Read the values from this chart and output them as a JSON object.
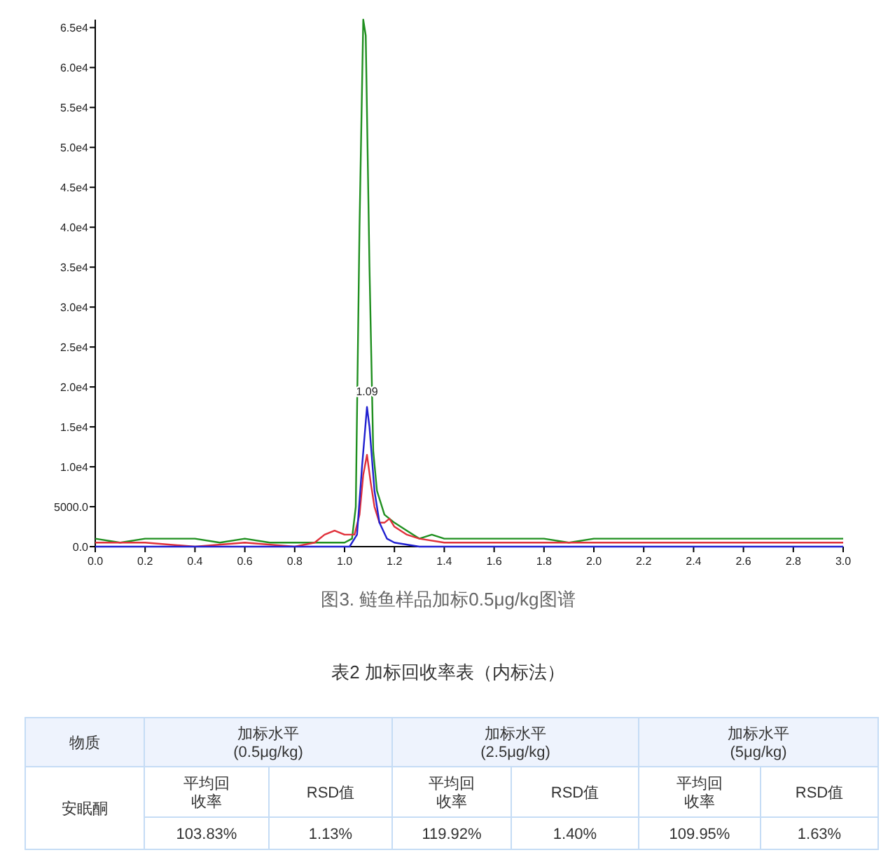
{
  "chart_data": [
    {
      "type": "line",
      "title": "图3. 鲢鱼样品加标0.5μg/kg图谱",
      "xlim": [
        0,
        3
      ],
      "xticks": [
        {
          "value": 0,
          "label": "0.0"
        },
        {
          "value": 0.2,
          "label": "0.2"
        },
        {
          "value": 0.4,
          "label": "0.4"
        },
        {
          "value": 0.6,
          "label": "0.6"
        },
        {
          "value": 0.8,
          "label": "0.8"
        },
        {
          "value": 1,
          "label": "1.0"
        },
        {
          "value": 1.2,
          "label": "1.2"
        },
        {
          "value": 1.4,
          "label": "1.4"
        },
        {
          "value": 1.6,
          "label": "1.6"
        },
        {
          "value": 1.8,
          "label": "1.8"
        },
        {
          "value": 2,
          "label": "2.0"
        },
        {
          "value": 2.2,
          "label": "2.2"
        },
        {
          "value": 2.4,
          "label": "2.4"
        },
        {
          "value": 2.6,
          "label": "2.6"
        },
        {
          "value": 2.8,
          "label": "2.8"
        },
        {
          "value": 3,
          "label": "3.0"
        }
      ],
      "ylim": [
        0,
        66000
      ],
      "yticks": [
        {
          "value": 0,
          "label": "0.0"
        },
        {
          "value": 5000,
          "label": "5000.0"
        },
        {
          "value": 10000,
          "label": "1.0e4"
        },
        {
          "value": 15000,
          "label": "1.5e4"
        },
        {
          "value": 20000,
          "label": "2.0e4"
        },
        {
          "value": 25000,
          "label": "2.5e4"
        },
        {
          "value": 30000,
          "label": "3.0e4"
        },
        {
          "value": 35000,
          "label": "3.5e4"
        },
        {
          "value": 40000,
          "label": "4.0e4"
        },
        {
          "value": 45000,
          "label": "4.5e4"
        },
        {
          "value": 50000,
          "label": "5.0e4"
        },
        {
          "value": 55000,
          "label": "5.5e4"
        },
        {
          "value": 60000,
          "label": "6.0e4"
        },
        {
          "value": 65000,
          "label": "6.5e4"
        }
      ],
      "grid": false,
      "annotations": [
        {
          "text": "1.09",
          "x": 1.09,
          "y": 19000
        }
      ],
      "series": [
        {
          "color": "#1f8f1f",
          "x": [
            0,
            0.1,
            0.2,
            0.3,
            0.4,
            0.5,
            0.6,
            0.7,
            0.8,
            0.9,
            1.0,
            1.03,
            1.045,
            1.06,
            1.075,
            1.085,
            1.1,
            1.115,
            1.13,
            1.16,
            1.2,
            1.25,
            1.3,
            1.35,
            1.4,
            1.5,
            1.6,
            1.7,
            1.8,
            1.9,
            2.0,
            2.2,
            2.4,
            2.6,
            2.8,
            3.0
          ],
          "values": [
            1000,
            500,
            1000,
            1000,
            1000,
            500,
            1000,
            500,
            500,
            500,
            500,
            1000,
            5000,
            40000,
            66000,
            64000,
            35000,
            12000,
            7000,
            4000,
            3000,
            2000,
            1000,
            1500,
            1000,
            1000,
            1000,
            1000,
            1000,
            500,
            1000,
            1000,
            1000,
            1000,
            1000,
            1000
          ]
        },
        {
          "color": "#e0303a",
          "x": [
            0,
            0.2,
            0.4,
            0.6,
            0.8,
            0.88,
            0.92,
            0.96,
            1.0,
            1.04,
            1.06,
            1.075,
            1.09,
            1.105,
            1.12,
            1.14,
            1.16,
            1.18,
            1.2,
            1.25,
            1.3,
            1.4,
            1.6,
            2.0,
            2.4,
            2.8,
            3.0
          ],
          "values": [
            500,
            500,
            0,
            500,
            0,
            500,
            1500,
            2000,
            1500,
            1500,
            4000,
            9000,
            11500,
            8000,
            5000,
            3000,
            3000,
            3500,
            2500,
            1500,
            1000,
            500,
            500,
            500,
            500,
            500,
            500
          ]
        },
        {
          "color": "#2020d0",
          "x": [
            0,
            0.5,
            0.9,
            1.02,
            1.05,
            1.07,
            1.09,
            1.1,
            1.12,
            1.14,
            1.17,
            1.2,
            1.3,
            2.0,
            3.0
          ],
          "values": [
            0,
            0,
            0,
            0,
            1500,
            10000,
            17500,
            15000,
            7000,
            3000,
            1000,
            500,
            0,
            0,
            0
          ]
        }
      ]
    },
    {
      "type": "other",
      "title": "表2 加标回收率表（内标法）",
      "annotations": [
        "物质",
        "加标水平\n(0.5μg/kg)",
        "加标水平\n(2.5μg/kg)",
        "加标水平\n(5μg/kg)",
        "安眠酮",
        "平均回收率",
        "RSD值",
        "平均回收率",
        "RSD值",
        "平均回收率",
        "RSD值",
        "103.83%",
        "1.13%",
        "119.92%",
        "1.40%",
        "109.95%",
        "1.63%"
      ]
    }
  ]
}
